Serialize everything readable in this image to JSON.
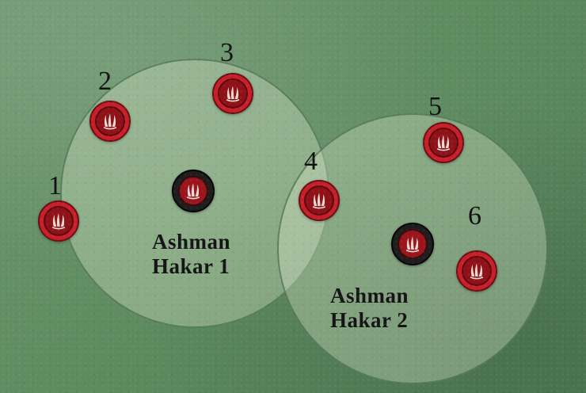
{
  "scene": {
    "colors": {
      "background": "#5f8a62",
      "zone_fill": "#e6eed2",
      "minion_red": "#c8202a",
      "boss_black": "#1e1e1e"
    },
    "zones": [
      {
        "label_line1": "Ashman",
        "label_line2": "Hakar 1"
      },
      {
        "label_line1": "Ashman",
        "label_line2": "Hakar 2"
      }
    ],
    "minions": [
      {
        "number": "1",
        "icon": "claw-icon"
      },
      {
        "number": "2",
        "icon": "claw-icon"
      },
      {
        "number": "3",
        "icon": "claw-icon"
      },
      {
        "number": "4",
        "icon": "claw-icon"
      },
      {
        "number": "5",
        "icon": "claw-icon"
      },
      {
        "number": "6",
        "icon": "claw-icon"
      }
    ],
    "bosses": [
      {
        "icon": "claw-icon"
      },
      {
        "icon": "claw-icon"
      }
    ]
  }
}
